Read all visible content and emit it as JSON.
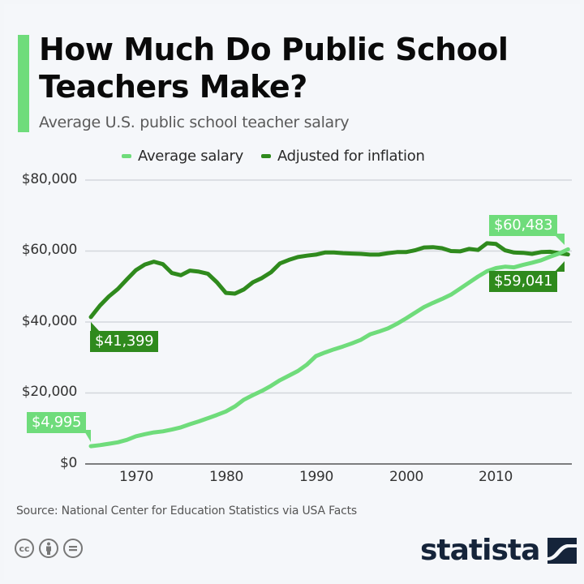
{
  "header": {
    "title": "How Much Do Public School Teachers Make?",
    "subtitle": "Average U.S. public school teacher salary"
  },
  "legend": [
    {
      "label": "Average salary",
      "color": "#6fdc7b"
    },
    {
      "label": "Adjusted for inflation",
      "color": "#2f8a1d"
    }
  ],
  "callouts": {
    "avg_start": "$4,995",
    "adj_start": "$41,399",
    "avg_end": "$60,483",
    "adj_end": "$59,041"
  },
  "footer": {
    "source": "Source: National Center for Education Statistics via USA Facts",
    "brand": "statista",
    "license_icons": [
      "cc-icon",
      "attribution-icon",
      "no-derivatives-icon"
    ]
  },
  "colors": {
    "accent": "#6fdc7b",
    "average_line": "#6fdc7b",
    "adjusted_line": "#2f8a1d",
    "brand": "#15243a",
    "background": "#f5f7fa"
  },
  "chart_data": {
    "type": "line",
    "title": "How Much Do Public School Teachers Make?",
    "subtitle": "Average U.S. public school teacher salary",
    "xlabel": "",
    "ylabel": "",
    "ylim": [
      0,
      80000
    ],
    "xlim": [
      1965,
      2018
    ],
    "y_ticks": [
      "$0",
      "$20,000",
      "$40,000",
      "$60,000",
      "$80,000"
    ],
    "x_ticks": [
      "1970",
      "1980",
      "1990",
      "2000",
      "2010"
    ],
    "grid": true,
    "legend_position": "top",
    "annotations": [
      "$4,995",
      "$41,399",
      "$60,483",
      "$59,041"
    ],
    "source": "National Center for Education Statistics via USA Facts",
    "x": [
      1965,
      1966,
      1967,
      1968,
      1969,
      1970,
      1971,
      1972,
      1973,
      1974,
      1975,
      1976,
      1977,
      1978,
      1979,
      1980,
      1981,
      1982,
      1983,
      1984,
      1985,
      1986,
      1987,
      1988,
      1989,
      1990,
      1991,
      1992,
      1993,
      1994,
      1995,
      1996,
      1997,
      1998,
      1999,
      2000,
      2001,
      2002,
      2003,
      2004,
      2005,
      2006,
      2007,
      2008,
      2009,
      2010,
      2011,
      2012,
      2013,
      2014,
      2015,
      2016,
      2017,
      2018
    ],
    "series": [
      {
        "name": "Average salary",
        "values": [
          4995,
          5300,
          5700,
          6100,
          6800,
          7800,
          8400,
          8900,
          9200,
          9700,
          10300,
          11200,
          12000,
          12900,
          13800,
          14800,
          16200,
          18100,
          19400,
          20600,
          22000,
          23600,
          24900,
          26200,
          28000,
          30400,
          31400,
          32300,
          33100,
          34000,
          35000,
          36500,
          37300,
          38200,
          39500,
          41000,
          42600,
          44200,
          45400,
          46500,
          47700,
          49400,
          51100,
          52800,
          54300,
          55200,
          55600,
          55400,
          56100,
          56700,
          57400,
          58400,
          59300,
          60483
        ]
      },
      {
        "name": "Adjusted for inflation",
        "values": [
          41399,
          44600,
          47200,
          49300,
          52000,
          54600,
          56200,
          57000,
          56300,
          53800,
          53200,
          54500,
          54200,
          53600,
          51200,
          48200,
          48000,
          49200,
          51200,
          52400,
          54000,
          56500,
          57500,
          58300,
          58700,
          59000,
          59600,
          59600,
          59400,
          59300,
          59200,
          59000,
          59000,
          59400,
          59700,
          59700,
          60200,
          61000,
          61100,
          60800,
          60000,
          59900,
          60600,
          60300,
          62200,
          62000,
          60200,
          59600,
          59500,
          59200,
          59700,
          59800,
          59400,
          59041
        ]
      }
    ]
  }
}
